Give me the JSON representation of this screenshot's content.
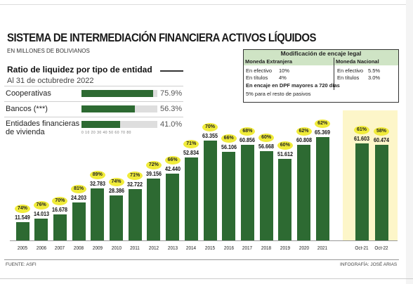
{
  "header": {
    "title": "SISTEMA DE INTERMEDIACIÓN FINANCIERA ACTIVOS LÍQUIDOS",
    "subtitle": "EN MILLONES DE BOLIVIANOS"
  },
  "ratio_panel": {
    "title": "Ratio de liquidez por tipo de entidad",
    "date": "Al 31 de octubredre 2022",
    "axis_ticks": "0 10 20 30 40 50 60 70 80",
    "rows": [
      {
        "label": "Cooperativas",
        "value": 75.9,
        "pct": "75.9%"
      },
      {
        "label": "Bancos (***)",
        "value": 56.3,
        "pct": "56.3%"
      },
      {
        "label": "Entidades financieras de vivienda",
        "value": 41.0,
        "pct": "41.0%"
      }
    ]
  },
  "encaje": {
    "title": "Modificación de encaje legal",
    "me_header": "Moneda Extranjera",
    "mn_header": "Moneda Nacional",
    "me_efectivo_label": "En efectivo",
    "me_efectivo_val": "10%",
    "me_titulos_label": "En títulos",
    "me_titulos_val": "4%",
    "mn_efectivo_label": "En efectivo",
    "mn_efectivo_val": "5.5%",
    "mn_titulos_label": "En títulos",
    "mn_titulos_val": "3.0%",
    "dpf_note": "En encaje en DPF mayores a 720 días",
    "rest_note": "5% para el resto de pasivos"
  },
  "chart_data": {
    "type": "bar",
    "title": "SISTEMA DE INTERMEDIACIÓN FINANCIERA ACTIVOS LÍQUIDOS",
    "ylabel": "EN MILLONES DE BOLIVIANOS",
    "categories": [
      "2005",
      "2006",
      "2007",
      "2008",
      "2009",
      "2010",
      "2011",
      "2012",
      "2013",
      "2014",
      "2015",
      "2016",
      "2017",
      "2018",
      "2019",
      "2020",
      "2021",
      "Oct-21",
      "Oct-22"
    ],
    "values": [
      11549,
      14013,
      16678,
      24203,
      32783,
      28386,
      32722,
      39156,
      42440,
      52834,
      63355,
      56106,
      60856,
      56668,
      51612,
      60808,
      65369,
      61603,
      60474
    ],
    "labels": [
      "11.549",
      "14.013",
      "16.678",
      "24.203",
      "32.783",
      "28.386",
      "32.722",
      "39.156",
      "42.440",
      "52.834",
      "63.355",
      "56.106",
      "60.856",
      "56.668",
      "51.612",
      "60.808",
      "65.369",
      "61.603",
      "60.474"
    ],
    "percentages": [
      "74%",
      "76%",
      "70%",
      "81%",
      "89%",
      "74%",
      "71%",
      "72%",
      "66%",
      "71%",
      "70%",
      "66%",
      "68%",
      "60%",
      "60%",
      "62%",
      "62%",
      "61%",
      "58%"
    ],
    "ylim": [
      0,
      70000
    ],
    "highlight_color": "#fdf6c9",
    "bar_color": "#2d6a32",
    "bubble_color": "#f0eb3a"
  },
  "footer": {
    "source": "FUENTE: ASFI",
    "credit": "INFOGRAFÍA: JOSÉ ARIAS"
  }
}
